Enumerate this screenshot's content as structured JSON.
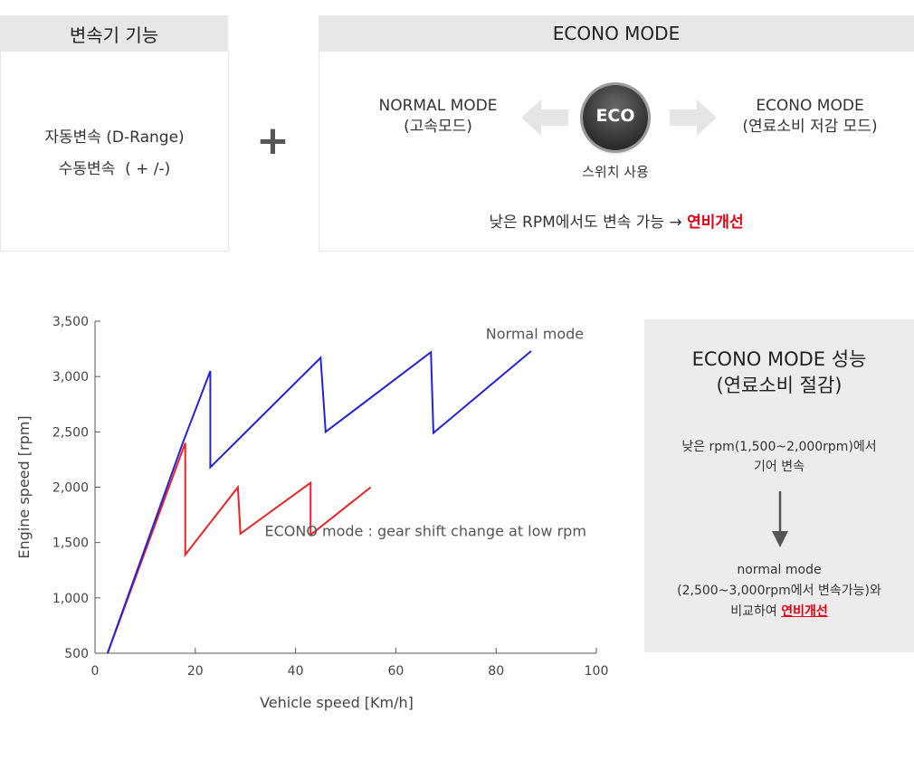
{
  "left_panel": {
    "title": "변속기 기능",
    "line1": "자동변속 (D-Range)",
    "line2": "수동변속  ( + /-)"
  },
  "plus": "+",
  "right_panel": {
    "title": "ECONO MODE",
    "normal_mode": "NORMAL MODE",
    "normal_mode_sub": "(고속모드)",
    "eco_button": "ECO",
    "switch_label": "스위치 사용",
    "econo_mode": "ECONO MODE",
    "econo_mode_sub": "(연료소비 저감 모드)",
    "note_prefix": "낮은 RPM에서도 변속 가능 → ",
    "note_highlight": "연비개선"
  },
  "side_box": {
    "title1": "ECONO MODE 성능",
    "title2": "(연료소비 절감)",
    "text1": "낮은 rpm(1,500~2,000rpm)에서",
    "text2": "기어 변속",
    "text3": "normal mode",
    "text4": "(2,500~3,000rpm에서 변속가능)와",
    "text5_prefix": "비교하여 ",
    "text5_highlight": "연비개선"
  },
  "colors": {
    "normal": "#2222dd",
    "econo": "#ee2222",
    "highlight": "#e60012"
  },
  "chart_data": {
    "type": "line",
    "xlabel": "Vehicle speed [Km/h]",
    "ylabel": "Engine speed [rpm]",
    "xlim": [
      0,
      100
    ],
    "ylim": [
      500,
      3500
    ],
    "xticks": [
      0,
      20,
      40,
      60,
      80,
      100
    ],
    "yticks": [
      500,
      1000,
      1500,
      2000,
      2500,
      3000,
      3500
    ],
    "xtick_labels": [
      "0",
      "20",
      "40",
      "60",
      "80",
      "100"
    ],
    "ytick_labels": [
      "500",
      "1,000",
      "1,500",
      "2,000",
      "2,500",
      "3,000",
      "3,500"
    ],
    "series": [
      {
        "name": "Normal mode",
        "color": "#2222dd",
        "x": [
          2.5,
          17.5,
          23,
          23,
          45,
          46,
          67,
          67.5,
          87
        ],
        "y": [
          500,
          2400,
          3050,
          2180,
          3170,
          2500,
          3220,
          2490,
          3230
        ]
      },
      {
        "name": "ECONO mode : gear shift change at low rpm",
        "color": "#ee2222",
        "x": [
          2.5,
          18,
          18,
          28.5,
          29,
          43,
          43,
          55
        ],
        "y": [
          500,
          2400,
          1390,
          2000,
          1580,
          2040,
          1570,
          2000
        ]
      }
    ]
  }
}
